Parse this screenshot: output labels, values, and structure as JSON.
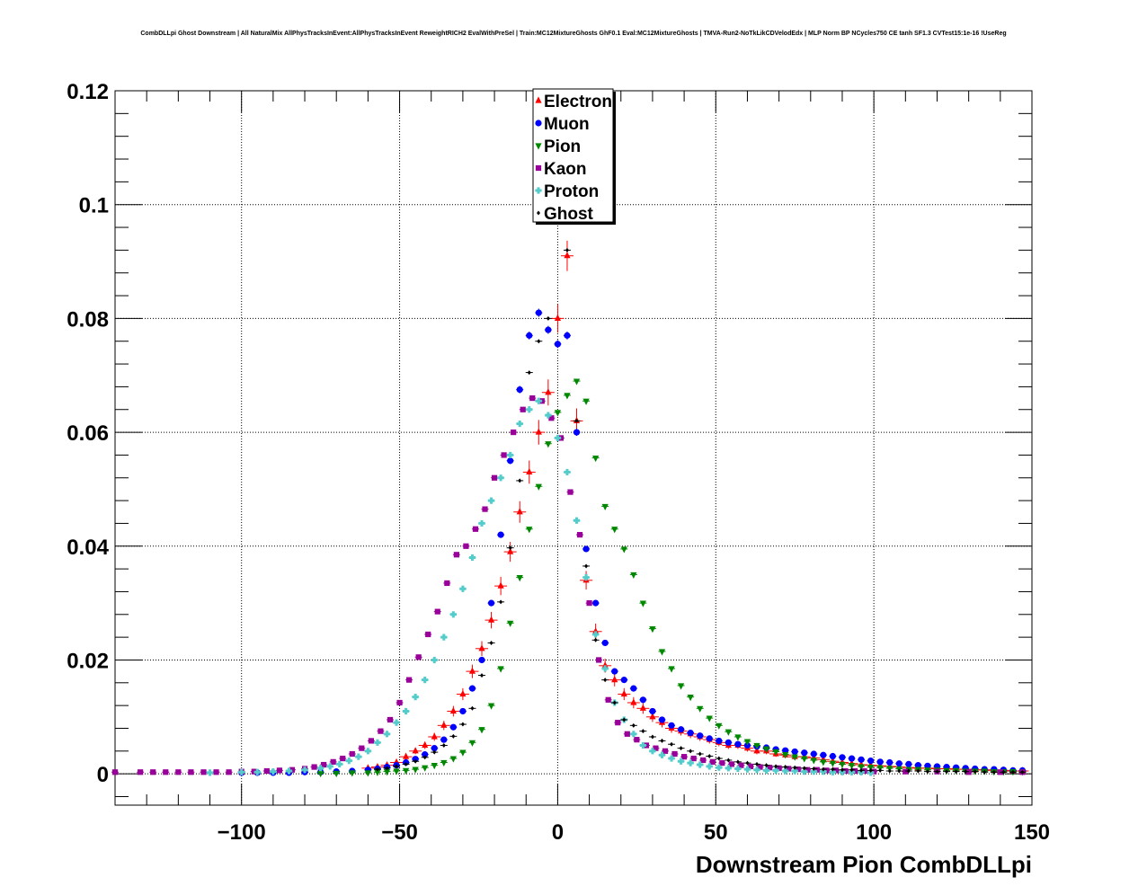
{
  "chart_data": {
    "type": "scatter",
    "title": "CombDLLpi Ghost Downstream | All NaturalMix AllPhysTracksInEvent:AllPhysTracksInEvent ReweightRICH2 EvalWithPreSel | Train:MC12MixtureGhosts GhF0.1 Eval:MC12MixtureGhosts | TMVA-Run2-NoTkLikCDVelodEdx | MLP Norm BP NCycles750 CE tanh SF1.3 CVTest15:1e-16 !UseReg",
    "xlabel": "Downstream Pion CombDLLpi",
    "ylabel": "",
    "xlim": [
      -140,
      150
    ],
    "ylim": [
      -0.0055,
      0.12
    ],
    "x_ticks": [
      -100,
      -50,
      0,
      50,
      100,
      150
    ],
    "x_tick_labels": [
      "−100",
      "−50",
      "0",
      "50",
      "100",
      "150"
    ],
    "y_ticks": [
      0,
      0.02,
      0.04,
      0.06,
      0.08,
      0.1,
      0.12
    ],
    "y_tick_labels": [
      "0",
      "0.02",
      "0.04",
      "0.06",
      "0.08",
      "0.1",
      "0.12"
    ],
    "grid": true,
    "legend_position": "top-center",
    "series": [
      {
        "name": "Electron",
        "color": "#ff0000",
        "marker": "triangle-up",
        "x": [
          -60,
          -57,
          -54,
          -51,
          -48,
          -45,
          -42,
          -39,
          -36,
          -33,
          -30,
          -27,
          -24,
          -21,
          -18,
          -15,
          -12,
          -9,
          -6,
          -3,
          0,
          3,
          6,
          9,
          12,
          15,
          18,
          21,
          24,
          27,
          30,
          33,
          36,
          39,
          42,
          45,
          48,
          51,
          54,
          57,
          60,
          63,
          66,
          69,
          72,
          75,
          78,
          81,
          84,
          87,
          90,
          93,
          96,
          99,
          102,
          105,
          108,
          111,
          114,
          117,
          120,
          123,
          126,
          129,
          132,
          135,
          138,
          141,
          144,
          147
        ],
        "y": [
          0.001,
          0.0012,
          0.0015,
          0.002,
          0.003,
          0.004,
          0.005,
          0.0065,
          0.0085,
          0.011,
          0.014,
          0.018,
          0.022,
          0.027,
          0.033,
          0.039,
          0.046,
          0.053,
          0.06,
          0.067,
          0.08,
          0.091,
          0.062,
          0.034,
          0.025,
          0.019,
          0.0165,
          0.014,
          0.0125,
          0.0115,
          0.01,
          0.009,
          0.008,
          0.0075,
          0.007,
          0.0065,
          0.006,
          0.0055,
          0.005,
          0.005,
          0.0045,
          0.004,
          0.004,
          0.0035,
          0.0033,
          0.003,
          0.003,
          0.0028,
          0.0025,
          0.0022,
          0.002,
          0.0018,
          0.0016,
          0.0015,
          0.0014,
          0.0013,
          0.0012,
          0.0011,
          0.001,
          0.001,
          0.0009,
          0.0009,
          0.0008,
          0.0008,
          0.0007,
          0.0007,
          0.0006,
          0.0006,
          0.0005,
          0.0005
        ]
      },
      {
        "name": "Muon",
        "color": "#0000ff",
        "marker": "circle",
        "x": [
          -100,
          -95,
          -90,
          -85,
          -80,
          -75,
          -70,
          -65,
          -60,
          -57,
          -54,
          -51,
          -48,
          -45,
          -42,
          -39,
          -36,
          -33,
          -30,
          -27,
          -24,
          -21,
          -18,
          -15,
          -12,
          -9,
          -6,
          -3,
          0,
          3,
          6,
          9,
          12,
          15,
          18,
          21,
          24,
          27,
          30,
          33,
          36,
          39,
          42,
          45,
          48,
          51,
          54,
          57,
          60,
          63,
          66,
          69,
          72,
          75,
          78,
          81,
          84,
          87,
          90,
          93,
          96,
          99,
          102,
          105,
          108,
          111,
          114,
          117,
          120,
          123,
          126,
          129,
          132,
          135,
          138,
          141,
          144,
          147
        ],
        "y": [
          0.0002,
          0.0002,
          0.0002,
          0.0002,
          0.0003,
          0.0003,
          0.0004,
          0.0005,
          0.0007,
          0.0009,
          0.0012,
          0.0015,
          0.002,
          0.0026,
          0.0034,
          0.0045,
          0.006,
          0.0082,
          0.011,
          0.015,
          0.02,
          0.03,
          0.042,
          0.055,
          0.0675,
          0.077,
          0.081,
          0.078,
          0.0755,
          0.077,
          0.06,
          0.0395,
          0.03,
          0.023,
          0.018,
          0.0165,
          0.015,
          0.013,
          0.011,
          0.0095,
          0.0085,
          0.0078,
          0.0072,
          0.0067,
          0.0062,
          0.0058,
          0.0055,
          0.0052,
          0.005,
          0.0048,
          0.0046,
          0.0043,
          0.0041,
          0.0039,
          0.0037,
          0.0035,
          0.0033,
          0.0031,
          0.0029,
          0.0027,
          0.0025,
          0.0023,
          0.0021,
          0.002,
          0.0018,
          0.0017,
          0.0015,
          0.0014,
          0.0013,
          0.0012,
          0.0011,
          0.001,
          0.0009,
          0.0008,
          0.0008,
          0.0007,
          0.0006,
          0.0006
        ]
      },
      {
        "name": "Pion",
        "color": "#008800",
        "marker": "triangle-down",
        "x": [
          -75,
          -70,
          -65,
          -60,
          -57,
          -54,
          -51,
          -48,
          -45,
          -42,
          -39,
          -36,
          -33,
          -30,
          -27,
          -24,
          -21,
          -18,
          -15,
          -12,
          -9,
          -6,
          -3,
          0,
          3,
          6,
          9,
          12,
          15,
          18,
          21,
          24,
          27,
          30,
          33,
          36,
          39,
          42,
          45,
          48,
          51,
          54,
          57,
          60,
          63,
          66,
          69,
          72,
          75,
          78,
          81,
          84,
          87,
          90,
          93,
          96,
          99,
          102,
          105,
          108,
          111,
          114,
          117,
          120,
          123,
          126,
          129,
          132,
          135,
          138,
          141,
          144,
          147
        ],
        "y": [
          0.0001,
          0.0001,
          0.0002,
          0.0002,
          0.0003,
          0.0004,
          0.0005,
          0.0006,
          0.0008,
          0.0011,
          0.0015,
          0.002,
          0.0027,
          0.0038,
          0.0055,
          0.0078,
          0.012,
          0.0185,
          0.0265,
          0.0345,
          0.043,
          0.0505,
          0.058,
          0.0635,
          0.0665,
          0.069,
          0.0655,
          0.0555,
          0.047,
          0.043,
          0.0395,
          0.035,
          0.03,
          0.0255,
          0.0215,
          0.0185,
          0.0155,
          0.0135,
          0.0115,
          0.0098,
          0.0085,
          0.0074,
          0.0065,
          0.0057,
          0.005,
          0.0044,
          0.0039,
          0.0034,
          0.003,
          0.0027,
          0.0024,
          0.0021,
          0.0019,
          0.0017,
          0.0015,
          0.0013,
          0.0012,
          0.0011,
          0.001,
          0.0009,
          0.0008,
          0.0008,
          0.0007,
          0.0007,
          0.0006,
          0.0006,
          0.0005,
          0.0005,
          0.0005,
          0.0004,
          0.0004,
          0.0004,
          0.0004
        ]
      },
      {
        "name": "Kaon",
        "color": "#990099",
        "marker": "square",
        "x": [
          -140,
          -132,
          -128,
          -124,
          -120,
          -116,
          -112,
          -108,
          -104,
          -100,
          -96,
          -92,
          -88,
          -84,
          -80,
          -77,
          -74,
          -71,
          -68,
          -65,
          -62,
          -59,
          -56,
          -53,
          -50,
          -47,
          -44,
          -41,
          -38,
          -35,
          -32,
          -29,
          -26,
          -23,
          -20,
          -17,
          -14,
          -11,
          -8,
          -5,
          -2,
          1,
          4,
          7,
          10,
          13,
          16,
          19,
          22,
          25,
          28,
          31,
          34,
          37,
          40,
          43,
          46,
          49,
          52,
          55,
          58,
          61,
          64,
          67,
          70,
          73,
          76,
          79,
          82,
          85,
          88,
          91,
          94,
          97,
          100,
          110,
          120,
          130,
          140,
          147
        ],
        "y": [
          0.0003,
          0.0003,
          0.0003,
          0.0003,
          0.0003,
          0.0003,
          0.0003,
          0.0003,
          0.0003,
          0.0004,
          0.0004,
          0.0005,
          0.0006,
          0.0007,
          0.0009,
          0.0012,
          0.0016,
          0.0021,
          0.0027,
          0.0035,
          0.0045,
          0.0058,
          0.0075,
          0.0095,
          0.0125,
          0.0165,
          0.0205,
          0.0245,
          0.0285,
          0.0335,
          0.0385,
          0.04,
          0.043,
          0.0465,
          0.052,
          0.056,
          0.06,
          0.064,
          0.066,
          0.0655,
          0.0625,
          0.059,
          0.0495,
          0.042,
          0.03,
          0.02,
          0.013,
          0.009,
          0.007,
          0.006,
          0.005,
          0.0045,
          0.004,
          0.0035,
          0.003,
          0.0027,
          0.0024,
          0.0021,
          0.0019,
          0.0017,
          0.0015,
          0.0013,
          0.0012,
          0.0011,
          0.001,
          0.0009,
          0.0008,
          0.0007,
          0.0007,
          0.0006,
          0.0006,
          0.0005,
          0.0005,
          0.0005,
          0.0004,
          0.0004,
          0.0004,
          0.0003,
          0.0003,
          0.0003
        ]
      },
      {
        "name": "Proton",
        "color": "#55cccc",
        "marker": "cross",
        "x": [
          -110,
          -100,
          -95,
          -90,
          -85,
          -80,
          -75,
          -72,
          -69,
          -66,
          -63,
          -60,
          -57,
          -54,
          -51,
          -48,
          -45,
          -42,
          -39,
          -36,
          -33,
          -30,
          -27,
          -24,
          -21,
          -18,
          -15,
          -12,
          -9,
          -6,
          -3,
          0,
          3,
          6,
          9,
          12,
          15,
          18,
          21,
          24,
          27,
          30,
          33,
          36,
          39,
          42,
          45,
          48,
          51,
          54,
          57,
          60,
          63,
          66,
          69,
          72,
          75,
          78,
          81,
          84,
          87,
          90,
          93,
          96,
          99
        ],
        "y": [
          0.0002,
          0.0003,
          0.0003,
          0.0004,
          0.0005,
          0.0007,
          0.001,
          0.0013,
          0.0017,
          0.0023,
          0.003,
          0.004,
          0.0055,
          0.007,
          0.009,
          0.011,
          0.0135,
          0.0165,
          0.02,
          0.024,
          0.028,
          0.0325,
          0.038,
          0.044,
          0.048,
          0.052,
          0.056,
          0.0615,
          0.064,
          0.0655,
          0.063,
          0.059,
          0.053,
          0.0445,
          0.0345,
          0.0245,
          0.0185,
          0.0125,
          0.0095,
          0.007,
          0.005,
          0.004,
          0.0033,
          0.0027,
          0.0022,
          0.0019,
          0.0016,
          0.0013,
          0.0011,
          0.001,
          0.0009,
          0.0008,
          0.0007,
          0.0006,
          0.0006,
          0.0005,
          0.0005,
          0.0004,
          0.0004,
          0.0004,
          0.0003,
          0.0003,
          0.0003,
          0.0003,
          0.0002
        ]
      },
      {
        "name": "Ghost",
        "color": "#000000",
        "marker": "diamond",
        "x": [
          -57,
          -54,
          -51,
          -48,
          -45,
          -42,
          -39,
          -36,
          -33,
          -30,
          -27,
          -24,
          -21,
          -18,
          -15,
          -12,
          -9,
          -6,
          -3,
          0,
          3,
          6,
          9,
          12,
          15,
          18,
          21,
          24,
          27,
          30,
          33,
          36,
          39,
          42,
          45,
          48,
          51,
          54,
          57,
          60,
          63,
          66,
          69,
          72,
          75,
          78,
          81,
          84,
          87,
          90,
          93,
          96,
          99,
          102,
          105,
          108,
          111,
          114,
          117,
          120,
          123,
          126,
          129,
          132,
          135,
          138,
          141,
          144,
          147
        ],
        "y": [
          0.0008,
          0.001,
          0.0013,
          0.0017,
          0.0022,
          0.0029,
          0.0038,
          0.005,
          0.0066,
          0.0087,
          0.0115,
          0.0173,
          0.023,
          0.0302,
          0.0397,
          0.0515,
          0.0705,
          0.076,
          0.08,
          0.0975,
          0.092,
          0.062,
          0.0365,
          0.0235,
          0.0165,
          0.0125,
          0.0095,
          0.0085,
          0.0075,
          0.0065,
          0.0058,
          0.0052,
          0.0045,
          0.004,
          0.0035,
          0.0031,
          0.0027,
          0.0024,
          0.0021,
          0.0019,
          0.0017,
          0.0015,
          0.0013,
          0.0012,
          0.0011,
          0.001,
          0.0009,
          0.0008,
          0.0008,
          0.0007,
          0.0007,
          0.0006,
          0.0006,
          0.0006,
          0.0005,
          0.0005,
          0.0005,
          0.0005,
          0.0004,
          0.0004,
          0.0004,
          0.0004,
          0.0004,
          0.0004,
          0.0003,
          0.0003,
          0.0003,
          0.0003,
          0.0003
        ]
      }
    ]
  }
}
